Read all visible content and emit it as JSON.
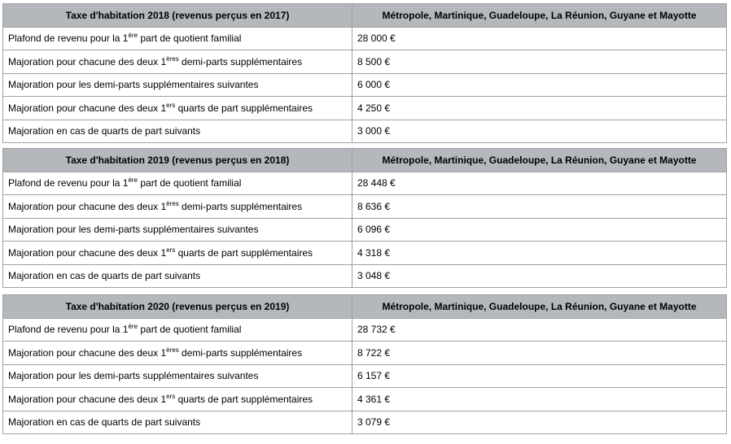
{
  "tables": [
    {
      "header": [
        "Taxe d'habitation 2018 (revenus perçus en 2017)",
        "Métropole, Martinique, Guadeloupe, La Réunion, Guyane et Mayotte"
      ],
      "rows": [
        {
          "label": {
            "pre": "Plafond de revenu pour la 1",
            "sup": "ère",
            "post": " part de quotient familial"
          },
          "value": "28 000 €"
        },
        {
          "label": {
            "pre": "Majoration pour chacune des deux 1",
            "sup": "ères",
            "post": " demi-parts supplémentaires"
          },
          "value": "8 500 €"
        },
        {
          "label": "Majoration pour les demi-parts supplémentaires suivantes",
          "value": "6 000 €"
        },
        {
          "label": {
            "pre": "Majoration pour chacune des deux 1",
            "sup": "ers",
            "post": " quarts de part supplémentaires"
          },
          "value": "4 250 €"
        },
        {
          "label": "Majoration en cas de quarts de part suivants",
          "value": "3 000 €"
        }
      ]
    },
    {
      "header": [
        "Taxe d'habitation 2019 (revenus perçus en 2018)",
        "Métropole, Martinique, Guadeloupe, La Réunion, Guyane et Mayotte"
      ],
      "rows": [
        {
          "label": {
            "pre": "Plafond de revenu pour la 1",
            "sup": "ère",
            "post": " part de quotient familial"
          },
          "value": "28 448 €"
        },
        {
          "label": {
            "pre": "Majoration pour chacune des deux 1",
            "sup": "ères",
            "post": " demi-parts supplémentaires"
          },
          "value": "8 636 €"
        },
        {
          "label": "Majoration pour les demi-parts supplémentaires suivantes",
          "value": "6 096 €"
        },
        {
          "label": {
            "pre": "Majoration pour chacune des deux 1",
            "sup": "ers",
            "post": " quarts de part supplémentaires"
          },
          "value": "4 318 €"
        },
        {
          "label": "Majoration en cas de quarts de part suivants",
          "value": "3 048 €"
        }
      ]
    },
    {
      "header": [
        "Taxe d'habitation 2020 (revenus perçus en 2019)",
        "Métropole, Martinique, Guadeloupe, La Réunion, Guyane et Mayotte"
      ],
      "rows": [
        {
          "label": {
            "pre": "Plafond de revenu pour la 1",
            "sup": "ère",
            "post": " part de quotient familial"
          },
          "value": "28 732 €"
        },
        {
          "label": {
            "pre": "Majoration pour chacune des deux 1",
            "sup": "ères",
            "post": " demi-parts supplémentaires"
          },
          "value": "8 722 €"
        },
        {
          "label": "Majoration pour les demi-parts supplémentaires suivantes",
          "value": "6 157 €"
        },
        {
          "label": {
            "pre": "Majoration pour chacune des deux 1",
            "sup": "ers",
            "post": " quarts de part supplémentaires"
          },
          "value": "4 361 €"
        },
        {
          "label": "Majoration en cas de quarts de part suivants",
          "value": "3 079 €"
        }
      ]
    }
  ]
}
